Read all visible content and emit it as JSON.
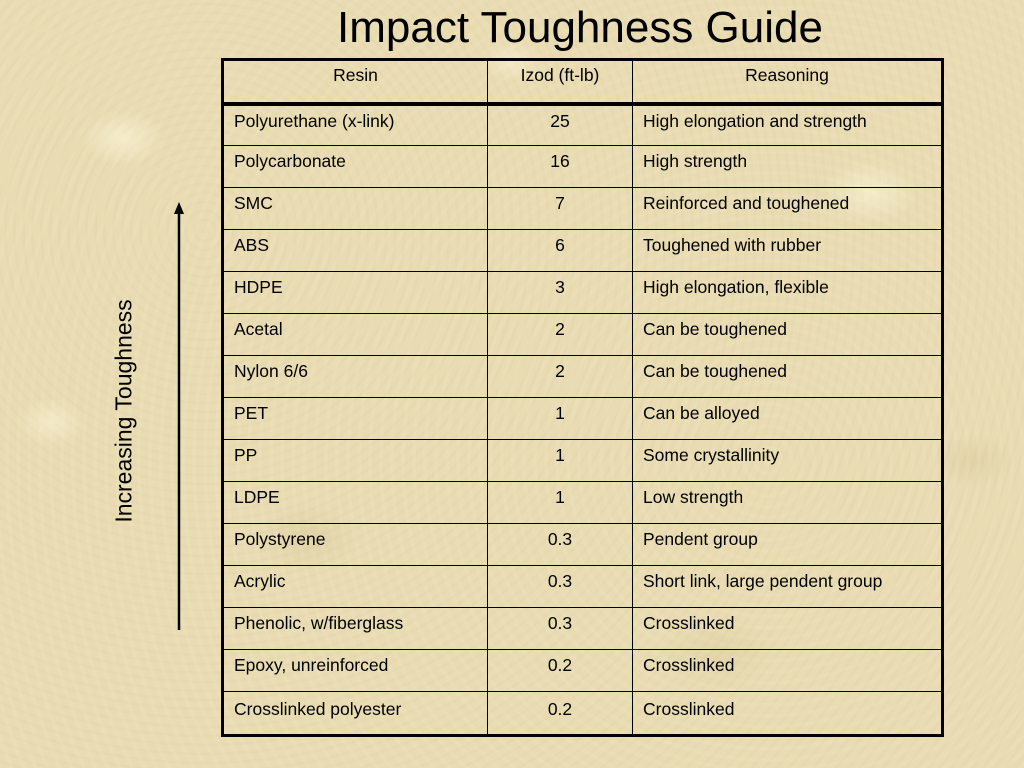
{
  "slide": {
    "title": "Impact Toughness Guide",
    "side_label": "Increasing Toughness"
  },
  "table": {
    "headers": [
      "Resin",
      "Izod (ft-lb)",
      "Reasoning"
    ],
    "rows": [
      [
        "Polyurethane (x-link)",
        "25",
        "High elongation and strength"
      ],
      [
        "Polycarbonate",
        "16",
        "High strength"
      ],
      [
        "SMC",
        "7",
        "Reinforced and toughened"
      ],
      [
        "ABS",
        "6",
        "Toughened with rubber"
      ],
      [
        "HDPE",
        "3",
        "High elongation, flexible"
      ],
      [
        "Acetal",
        "2",
        "Can be toughened"
      ],
      [
        "Nylon 6/6",
        "2",
        "Can be toughened"
      ],
      [
        "PET",
        "1",
        "Can be alloyed"
      ],
      [
        "PP",
        "1",
        "Some crystallinity"
      ],
      [
        "LDPE",
        "1",
        "Low strength"
      ],
      [
        "Polystyrene",
        "0.3",
        "Pendent group"
      ],
      [
        "Acrylic",
        "0.3",
        "Short link, large pendent group"
      ],
      [
        "Phenolic, w/fiberglass",
        "0.3",
        "Crosslinked"
      ],
      [
        "Epoxy, unreinforced",
        "0.2",
        "Crosslinked"
      ],
      [
        "Crosslinked polyester",
        "0.2",
        "Crosslinked"
      ]
    ]
  },
  "arrow": {
    "icon": "up-arrow-icon",
    "color": "#000000"
  }
}
